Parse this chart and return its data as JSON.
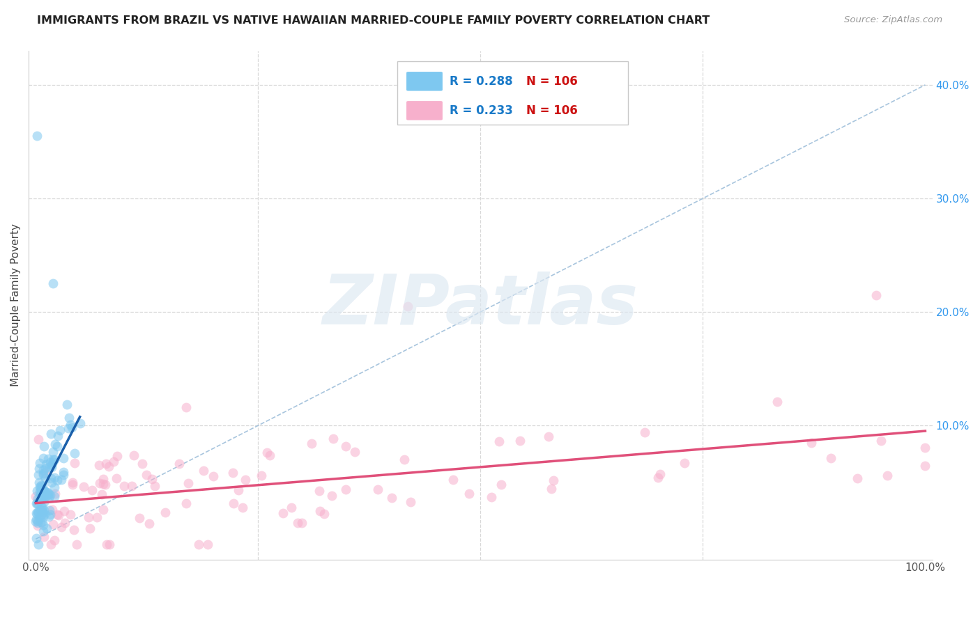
{
  "title": "IMMIGRANTS FROM BRAZIL VS NATIVE HAWAIIAN MARRIED-COUPLE FAMILY POVERTY CORRELATION CHART",
  "source": "Source: ZipAtlas.com",
  "ylabel": "Married-Couple Family Poverty",
  "xlim": [
    -0.008,
    1.008
  ],
  "ylim": [
    -0.018,
    0.43
  ],
  "yticks_right": [
    0.0,
    0.1,
    0.2,
    0.3,
    0.4
  ],
  "ytick_labels_right": [
    "",
    "10.0%",
    "20.0%",
    "30.0%",
    "40.0%"
  ],
  "brazil_color": "#7ec8f0",
  "hawaii_color": "#f7b0cc",
  "brazil_R": 0.288,
  "brazil_N": 106,
  "hawaii_R": 0.233,
  "hawaii_N": 106,
  "legend_R_color": "#1a7ac8",
  "legend_N_color": "#cc1111",
  "watermark_text": "ZIPatlas",
  "background_color": "#ffffff",
  "grid_color": "#d8d8d8",
  "marker_size": 100,
  "marker_alpha": 0.55,
  "brazil_line_color": "#1a5faa",
  "hawaii_line_color": "#e0507a",
  "ref_line_color": "#99bbd8",
  "ref_line_style": "--",
  "legend_box_color": "#cccccc",
  "title_color": "#222222",
  "source_color": "#999999",
  "ylabel_color": "#444444",
  "xtick_color": "#555555",
  "ytick_right_color": "#3399ee"
}
